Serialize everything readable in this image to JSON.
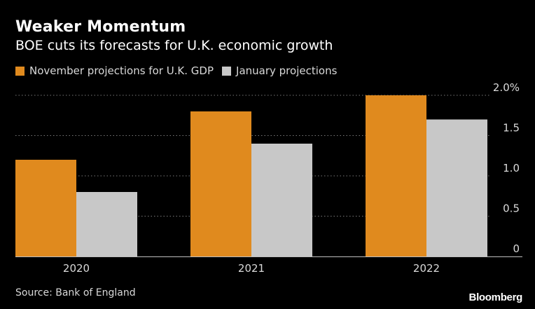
{
  "title": "Weaker Momentum",
  "subtitle": "BOE cuts its forecasts for U.K. economic growth",
  "source": "Source: Bank of England",
  "logo": "Bloomberg",
  "colors": {
    "background": "#000000",
    "november": "#e08a1e",
    "january": "#c8c8c8",
    "grid": "#7a7a7a",
    "text": "#d9d9d9"
  },
  "chart_data": {
    "type": "bar",
    "categories": [
      "2020",
      "2021",
      "2022"
    ],
    "series": [
      {
        "name": "November projections for U.K. GDP",
        "values": [
          1.2,
          1.8,
          2.0
        ]
      },
      {
        "name": "January projections",
        "values": [
          0.8,
          1.4,
          1.7
        ]
      }
    ],
    "ylim": [
      0,
      2.0
    ],
    "yticks": [
      0,
      0.5,
      1.0,
      1.5,
      2.0
    ],
    "ytick_labels": [
      "0",
      "0.5",
      "1.0",
      "1.5",
      "2.0%"
    ],
    "y_axis_position": "right",
    "grid": true,
    "legend_position": "top-left"
  }
}
